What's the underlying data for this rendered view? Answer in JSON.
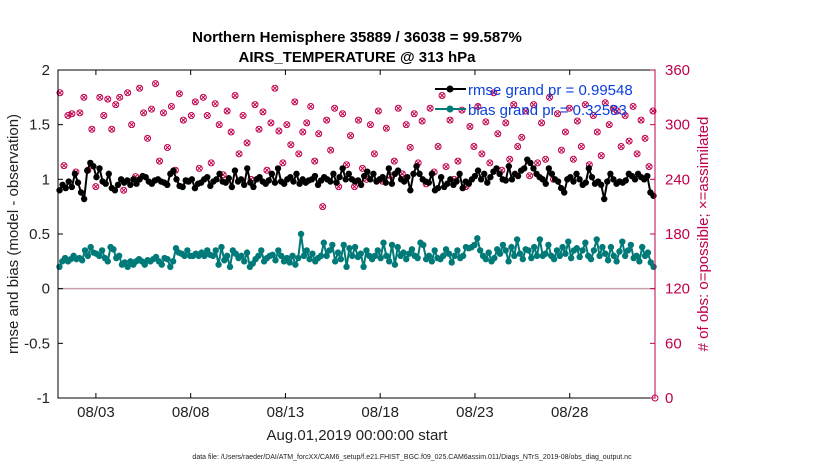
{
  "chart_data": {
    "type": "line",
    "title_line1": "Northern Hemisphere 35889 / 36038 = 99.587%",
    "title_line2": "AIRS_TEMPERATURE @ 313 hPa",
    "ylabel_left": "rmse and bias (model - observation)",
    "ylabel_right": "# of obs: o=possible; ×=assimilated",
    "xlabel": "Aug.01,2019 00:00:00 start",
    "footer": "data file: /Users/raeder/DAI/ATM_forcXX/CAM6_setup/f.e21.FHIST_BGC.f09_025.CAM6assim.011/Diags_NTrS_2019-08/obs_diag_output.nc",
    "ylim_left": [
      -1,
      2
    ],
    "ylim_right": [
      0,
      360
    ],
    "xlim_days": [
      0,
      31.5
    ],
    "left_ticks": [
      "2",
      "1.5",
      "1",
      "0.5",
      "0",
      "-0.5",
      "-1"
    ],
    "right_ticks": [
      "360",
      "300",
      "240",
      "180",
      "120",
      "60",
      "0"
    ],
    "x_ticks": [
      {
        "day": 2,
        "label": "08/03"
      },
      {
        "day": 7,
        "label": "08/08"
      },
      {
        "day": 12,
        "label": "08/13"
      },
      {
        "day": 17,
        "label": "08/18"
      },
      {
        "day": 22,
        "label": "08/23"
      },
      {
        "day": 27,
        "label": "08/28"
      }
    ],
    "zero_line": 0,
    "series": [
      {
        "name": "rmse",
        "legend": "rmse grand pr = 0.99548",
        "color": "#000000",
        "axis": "left",
        "values": [
          0.9,
          0.95,
          0.92,
          0.98,
          0.93,
          1.05,
          0.97,
          0.88,
          0.82,
          1.08,
          1.15,
          1.12,
          1.02,
          1.1,
          0.98,
          0.96,
          1.05,
          0.92,
          0.9,
          0.95,
          1.0,
          0.97,
          0.99,
          0.95,
          1.0,
          0.96,
          1.0,
          1.03,
          1.02,
          0.98,
          0.96,
          0.99,
          1.0,
          0.98,
          0.97,
          0.95,
          1.05,
          1.08,
          1.0,
          0.94,
          0.93,
          0.99,
          0.98,
          1.0,
          0.92,
          0.96,
          0.97,
          1.0,
          1.02,
          0.94,
          0.98,
          1.0,
          1.05,
          0.98,
          0.97,
          1.01,
          0.93,
          1.08,
          0.98,
          1.0,
          0.95,
          1.1,
          0.97,
          0.93,
          1.0,
          1.02,
          0.98,
          0.96,
          0.99,
          1.05,
          0.97,
          1.1,
          0.98,
          0.96,
          1.0,
          1.02,
          0.98,
          1.05,
          0.96,
          1.0,
          0.97,
          0.99,
          1.0,
          1.03,
          0.95,
          0.99,
          1.02,
          1.0,
          0.98,
          1.05,
          0.97,
          1.02,
          1.1,
          1.0,
          1.05,
          1.0,
          0.98,
          0.99,
          0.95,
          1.03,
          1.07,
          1.0,
          1.05,
          0.98,
          1.0,
          1.02,
          0.97,
          1.1,
          0.96,
          1.05,
          1.08,
          1.0,
          0.98,
          1.02,
          0.9,
          1.05,
          1.12,
          1.05,
          1.0,
          0.98,
          0.97,
          1.05,
          0.9,
          0.92,
          1.02,
          0.93,
          0.96,
          1.0,
          0.95,
          0.98,
          1.05,
          0.92,
          0.98,
          0.96,
          1.0,
          1.03,
          1.08,
          1.0,
          1.05,
          0.97,
          1.02,
          1.07,
          1.1,
          1.05,
          1.0,
          0.99,
          1.12,
          1.0,
          1.05,
          1.03,
          1.08,
          1.1,
          1.18,
          1.15,
          1.1,
          1.05,
          1.02,
          1.0,
          0.96,
          1.1,
          1.05,
          1.0,
          0.98,
          0.92,
          0.88,
          1.0,
          1.02,
          0.98,
          1.05,
          1.0,
          0.95,
          0.97,
          1.1,
          1.02,
          0.96,
          0.98,
          0.95,
          0.82,
          0.98,
          1.05,
          1.0,
          0.96,
          0.98,
          0.97,
          0.99,
          1.05,
          1.03,
          1.0,
          1.05,
          1.02,
          1.0,
          1.03,
          0.88,
          0.85
        ]
      },
      {
        "name": "bias",
        "legend": "bias grand pr = 0.32583",
        "color": "#007a78",
        "axis": "left",
        "values": [
          0.2,
          0.25,
          0.28,
          0.25,
          0.27,
          0.3,
          0.27,
          0.28,
          0.26,
          0.35,
          0.3,
          0.38,
          0.33,
          0.32,
          0.3,
          0.35,
          0.28,
          0.25,
          0.38,
          0.36,
          0.28,
          0.3,
          0.22,
          0.24,
          0.2,
          0.25,
          0.22,
          0.25,
          0.27,
          0.25,
          0.22,
          0.26,
          0.25,
          0.27,
          0.29,
          0.25,
          0.22,
          0.28,
          0.27,
          0.2,
          0.25,
          0.37,
          0.33,
          0.32,
          0.3,
          0.35,
          0.3,
          0.3,
          0.32,
          0.3,
          0.33,
          0.3,
          0.35,
          0.31,
          0.3,
          0.35,
          0.22,
          0.38,
          0.26,
          0.3,
          0.2,
          0.35,
          0.32,
          0.28,
          0.3,
          0.25,
          0.33,
          0.2,
          0.23,
          0.27,
          0.3,
          0.35,
          0.25,
          0.28,
          0.3,
          0.31,
          0.26,
          0.35,
          0.3,
          0.25,
          0.28,
          0.24,
          0.3,
          0.22,
          0.28,
          0.5,
          0.3,
          0.35,
          0.27,
          0.32,
          0.25,
          0.28,
          0.3,
          0.42,
          0.3,
          0.35,
          0.4,
          0.25,
          0.33,
          0.27,
          0.4,
          0.2,
          0.37,
          0.3,
          0.38,
          0.29,
          0.32,
          0.2,
          0.35,
          0.3,
          0.27,
          0.3,
          0.35,
          0.28,
          0.42,
          0.3,
          0.25,
          0.4,
          0.22,
          0.38,
          0.3,
          0.33,
          0.27,
          0.32,
          0.36,
          0.3,
          0.28,
          0.42,
          0.4,
          0.27,
          0.3,
          0.25,
          0.35,
          0.28,
          0.27,
          0.3,
          0.36,
          0.32,
          0.24,
          0.3,
          0.35,
          0.28,
          0.3,
          0.38,
          0.37,
          0.38,
          0.4,
          0.46,
          0.35,
          0.3,
          0.27,
          0.33,
          0.25,
          0.28,
          0.36,
          0.32,
          0.4,
          0.35,
          0.25,
          0.38,
          0.3,
          0.45,
          0.32,
          0.27,
          0.36,
          0.35,
          0.28,
          0.38,
          0.3,
          0.45,
          0.3,
          0.32,
          0.4,
          0.3,
          0.27,
          0.35,
          0.3,
          0.38,
          0.32,
          0.43,
          0.28,
          0.35,
          0.37,
          0.29,
          0.35,
          0.42,
          0.3,
          0.27,
          0.35,
          0.45,
          0.3,
          0.38,
          0.32,
          0.26,
          0.38,
          0.3,
          0.25,
          0.34,
          0.43,
          0.3,
          0.35,
          0.4,
          0.28,
          0.3,
          0.25,
          0.38,
          0.3,
          0.33,
          0.24,
          0.2
        ]
      },
      {
        "name": "obs possible",
        "color": "#c0004e",
        "axis": "right",
        "marker": "o",
        "values": [
          335,
          255,
          310,
          312,
          248,
          313,
          330,
          250,
          295,
          232,
          330,
          310,
          328,
          295,
          322,
          330,
          228,
          335,
          300,
          243,
          340,
          313,
          285,
          317,
          345,
          260,
          313,
          275,
          320,
          250,
          334,
          305,
          238,
          310,
          325,
          252,
          330,
          310,
          258,
          323,
          300,
          245,
          315,
          292,
          332,
          268,
          310,
          280,
          240,
          322,
          295,
          314,
          250,
          302,
          340,
          293,
          258,
          300,
          278,
          325,
          268,
          292,
          302,
          320,
          260,
          290,
          210,
          305,
          272,
          318,
          232,
          312,
          256,
          288,
          232,
          305,
          252,
          240,
          300,
          268,
          315,
          238,
          296,
          244,
          260,
          318,
          246,
          300,
          275,
          312,
          258,
          304,
          235,
          318,
          248,
          276,
          332,
          254,
          305,
          240,
          260,
          316,
          232,
          298,
          276,
          320,
          268,
          303,
          258,
          335,
          290,
          250,
          302,
          262,
          322,
          276,
          286,
          315,
          244,
          322,
          258,
          302,
          262,
          330,
          240,
          312,
          272,
          292,
          318,
          262,
          304,
          276,
          322,
          256,
          310,
          292,
          266,
          324,
          300,
          318,
          315,
          276,
          310,
          282,
          320,
          268,
          305,
          285,
          254,
          315
        ]
      },
      {
        "name": "obs assimilated",
        "color": "#c0004e",
        "axis": "right",
        "marker": "x",
        "values": [
          335,
          255,
          310,
          312,
          248,
          313,
          330,
          250,
          295,
          232,
          330,
          310,
          328,
          295,
          322,
          330,
          228,
          335,
          300,
          243,
          340,
          313,
          285,
          317,
          345,
          260,
          313,
          275,
          320,
          250,
          334,
          305,
          238,
          310,
          325,
          252,
          330,
          310,
          258,
          323,
          300,
          245,
          315,
          292,
          332,
          268,
          310,
          280,
          240,
          322,
          295,
          314,
          250,
          302,
          340,
          293,
          258,
          300,
          278,
          325,
          268,
          292,
          302,
          320,
          260,
          290,
          210,
          305,
          272,
          318,
          232,
          312,
          256,
          288,
          232,
          305,
          252,
          240,
          300,
          268,
          315,
          238,
          296,
          244,
          260,
          318,
          246,
          300,
          275,
          312,
          258,
          304,
          235,
          318,
          248,
          276,
          332,
          254,
          305,
          240,
          260,
          316,
          232,
          298,
          276,
          320,
          268,
          303,
          258,
          335,
          290,
          250,
          302,
          262,
          322,
          276,
          286,
          315,
          244,
          322,
          258,
          302,
          262,
          330,
          240,
          312,
          272,
          292,
          318,
          262,
          304,
          276,
          322,
          256,
          310,
          292,
          266,
          324,
          300,
          318,
          315,
          276,
          310,
          282,
          320,
          268,
          305,
          285,
          254,
          315
        ]
      }
    ]
  }
}
